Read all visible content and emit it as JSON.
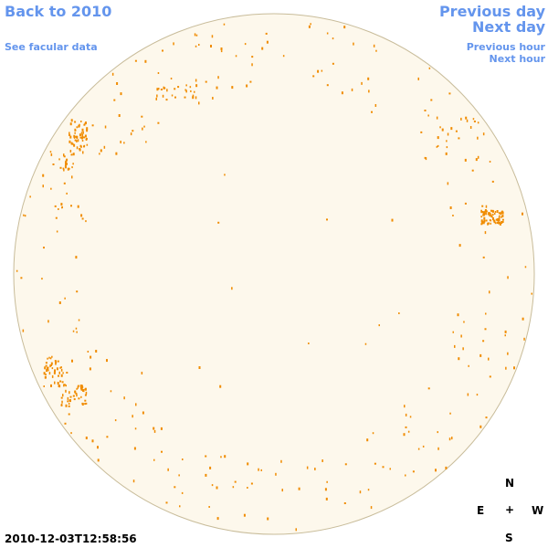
{
  "nav": {
    "back": "Back to 2010",
    "facular": "See facular data",
    "prev_day": "Previous day",
    "next_day": "Next day",
    "prev_hour": "Previous hour",
    "next_hour": "Next hour"
  },
  "timestamp": "2010-12-03T12:58:56",
  "compass": {
    "n": "N",
    "e": "E",
    "center": "+",
    "w": "W",
    "s": "S"
  },
  "colors": {
    "link": "#6495ED",
    "disk_fill": "#FDF8EC",
    "disk_stroke": "#C8BC9A",
    "faculae": "#F08C00"
  }
}
